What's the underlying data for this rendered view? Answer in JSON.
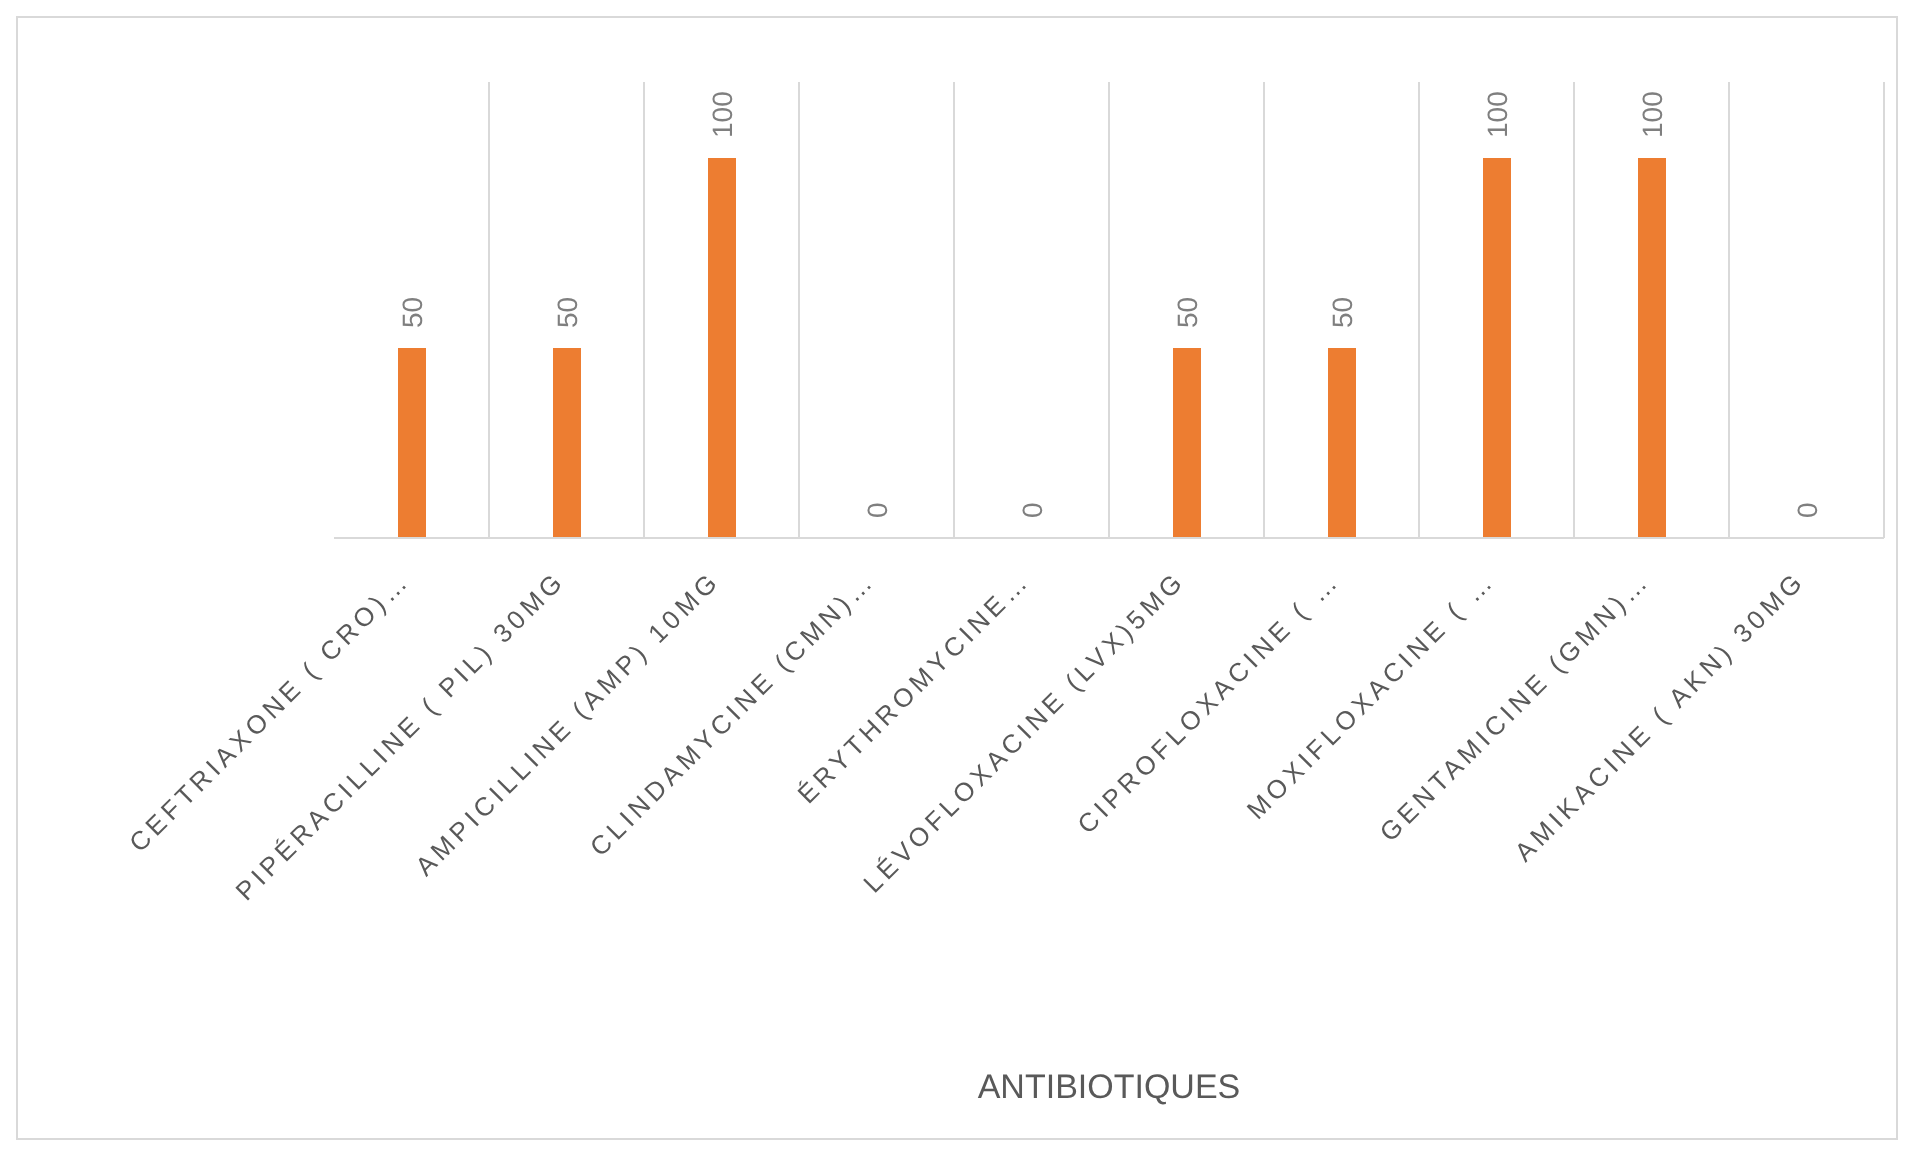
{
  "chart_data": {
    "type": "bar",
    "xlabel": "ANTIBIOTIQUES",
    "categories": [
      "CEFTRIAXONE  ( CRO)…",
      "PIPÉRACILLINE ( PIL) 30MG",
      "AMPICILLINE (AMP) 10MG",
      "CLINDAMYCINE (CMN)…",
      "ÉRYTHROMYCINE…",
      "LÉVOFLOXACINE (LVX)5MG",
      "CIPROFLOXACINE ( …",
      "MOXIFLOXACINE ( …",
      "GENTAMICINE (GMN)…",
      "AMIKACINE ( AKN) 30MG"
    ],
    "values": [
      50,
      50,
      100,
      0,
      0,
      50,
      50,
      100,
      100,
      0
    ],
    "color": "#ed7d31",
    "data_labels": true,
    "grid": "x"
  }
}
